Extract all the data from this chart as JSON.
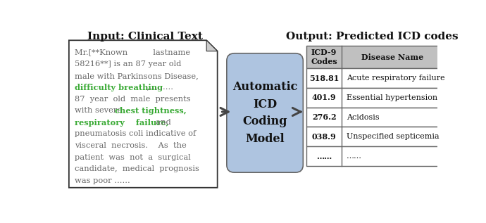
{
  "title_left": "Input: Clinical Text",
  "title_right": "Output: Predicted ICD codes",
  "model_label": "Automatic\nICD\nCoding\nModel",
  "model_box_color": "#aec4e0",
  "model_box_edge": "#666666",
  "table_header": [
    "ICD-9\nCodes",
    "Disease Name"
  ],
  "table_rows": [
    [
      "518.81",
      "Acute respiratory failure"
    ],
    [
      "401.9",
      "Essential hypertension"
    ],
    [
      "276.2",
      "Acidosis"
    ],
    [
      "038.9",
      "Unspecified septicemia"
    ],
    [
      "……",
      "……"
    ]
  ],
  "header_bg": "#c0c0c0",
  "row_bg": "#ffffff",
  "arrow_color": "#444444",
  "bg_color": "#ffffff",
  "text_box_bg": "#ffffff",
  "text_box_edge": "#333333",
  "gray_text": "#666666",
  "green_text": "#3aaa35"
}
